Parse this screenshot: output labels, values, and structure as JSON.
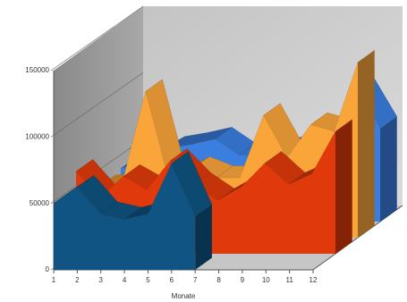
{
  "chart_data": {
    "type": "area3d",
    "x_label": "Monate",
    "x": [
      1,
      2,
      3,
      4,
      5,
      6,
      7,
      8,
      9,
      10,
      11,
      12
    ],
    "xticks": [
      1,
      2,
      3,
      4,
      5,
      6,
      7,
      8,
      9,
      10,
      11,
      12
    ],
    "xlim": [
      1,
      12
    ],
    "ylim": [
      0,
      150000
    ],
    "yticks": [
      0,
      50000,
      100000,
      150000
    ],
    "series": [
      {
        "color": "#0f5482",
        "values": [
          50000,
          62000,
          42000,
          38000,
          42000,
          80000,
          40000,
          null,
          null,
          null,
          null,
          null
        ]
      },
      {
        "color": "#e03a0c",
        "values": [
          62000,
          42000,
          58000,
          48000,
          70000,
          52000,
          40000,
          50000,
          68000,
          52000,
          60000,
          92000
        ]
      },
      {
        "color": "#f9a53a",
        "values": [
          38000,
          40000,
          110000,
          42000,
          52000,
          45000,
          45000,
          92000,
          60000,
          85000,
          80000,
          132000
        ]
      },
      {
        "color": "#3a7fe0",
        "values": [
          40000,
          45000,
          55000,
          58000,
          62000,
          50000,
          48000,
          55000,
          56000,
          72000,
          100000,
          70000
        ]
      }
    ]
  }
}
